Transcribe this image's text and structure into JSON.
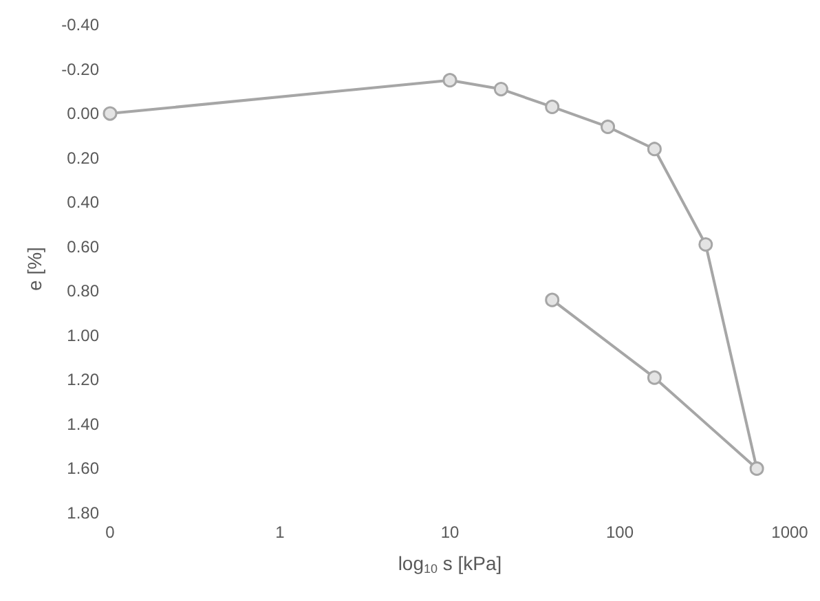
{
  "chart_data": {
    "type": "line",
    "xlabel": "log$_{10}$ s [kPa]",
    "ylabel": "e [%]",
    "log": "x",
    "x": [
      0.1,
      10,
      20,
      40,
      85,
      160,
      320,
      640,
      160,
      40
    ],
    "series": [
      {
        "color": "#a6a6a6",
        "values": [
          0.0,
          -0.15,
          -0.11,
          -0.03,
          0.06,
          0.16,
          0.59,
          1.6,
          1.19,
          0.84
        ]
      }
    ],
    "xlim": [
      0.1,
      1000
    ],
    "xticks": [
      {
        "value": 0.1,
        "label": "0"
      },
      1,
      10,
      100,
      1000
    ],
    "ylim": [
      1.8,
      -0.4
    ],
    "yticks": [
      {
        "value": -0.4,
        "label": "-0.40"
      },
      {
        "value": -0.2,
        "label": "-0.20"
      },
      {
        "value": 0,
        "label": "0.00"
      },
      {
        "value": 0.2,
        "label": "0.20"
      },
      {
        "value": 0.4,
        "label": "0.40"
      },
      {
        "value": 0.6,
        "label": "0.60"
      },
      {
        "value": 0.8,
        "label": "0.80"
      },
      {
        "value": 1.0,
        "label": "1.00"
      },
      {
        "value": 1.2,
        "label": "1.20"
      },
      {
        "value": 1.4,
        "label": "1.40"
      },
      {
        "value": 1.6,
        "label": "1.60"
      },
      {
        "value": 1.8,
        "label": "1.80"
      }
    ],
    "grid": false,
    "marker": "circle",
    "line_style": "solid"
  }
}
